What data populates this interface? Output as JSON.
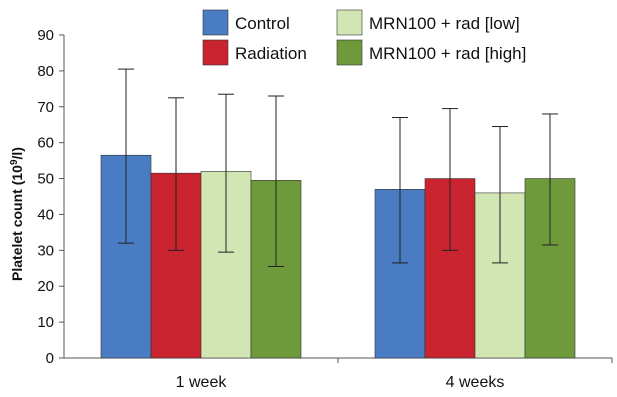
{
  "chart_data": {
    "type": "bar",
    "categories": [
      "1 week",
      "4 weeks"
    ],
    "ylabel_prefix": "Platelet count (10",
    "ylabel_sup": "9",
    "ylabel_suffix": "/l)",
    "ylim": [
      0,
      90
    ],
    "yticks": [
      "0",
      "10",
      "20",
      "30",
      "40",
      "50",
      "60",
      "70",
      "80",
      "90"
    ],
    "grid": false,
    "legend_placement": "top",
    "series": [
      {
        "name": "Control",
        "color": "#4a7cc4",
        "values": [
          56.5,
          47
        ],
        "error_low": [
          32,
          26.5
        ],
        "error_high": [
          80.5,
          67
        ]
      },
      {
        "name": "Radiation",
        "color": "#c9242f",
        "values": [
          51.5,
          50
        ],
        "error_low": [
          30,
          30
        ],
        "error_high": [
          72.5,
          69.5
        ]
      },
      {
        "name": "MRN100 + rad [low]",
        "color": "#d2e6b4",
        "values": [
          52,
          46
        ],
        "error_low": [
          29.5,
          26.5
        ],
        "error_high": [
          73.5,
          64.5
        ]
      },
      {
        "name": "MRN100 + rad [high]",
        "color": "#6e9a3c",
        "values": [
          49.5,
          50
        ],
        "error_low": [
          25.5,
          31.5
        ],
        "error_high": [
          73,
          68
        ]
      }
    ]
  }
}
